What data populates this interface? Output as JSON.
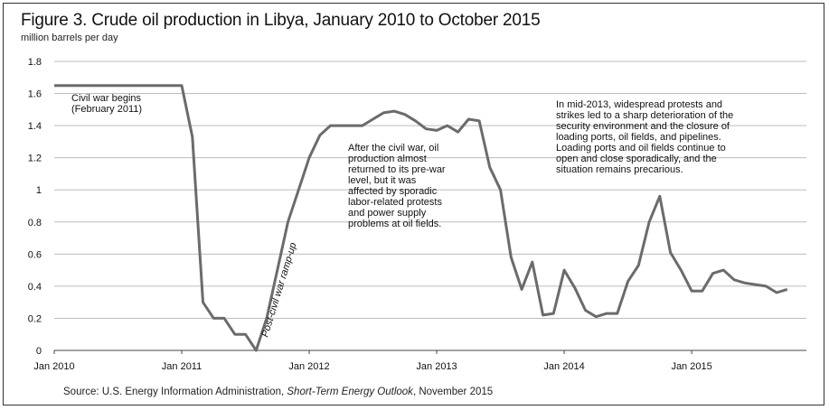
{
  "chart_data": {
    "type": "line",
    "title": "Figure 3. Crude oil production in Libya, January 2010 to October 2015",
    "subtitle": "million barrels per day",
    "xlabel": "",
    "ylabel": "million barrels per day",
    "ylim": [
      0,
      1.8
    ],
    "yticks": [
      0,
      0.2,
      0.4,
      0.6,
      0.8,
      1,
      1.2,
      1.4,
      1.6,
      1.8
    ],
    "ytick_labels": [
      "0",
      "0.2",
      "0.4",
      "0.6",
      "0.8",
      "1",
      "1.2",
      "1.4",
      "1.6",
      "1.8"
    ],
    "xticks": [
      "Jan 2010",
      "Jan 2011",
      "Jan 2012",
      "Jan 2013",
      "Jan 2014",
      "Jan 2015"
    ],
    "grid": true,
    "series_color": "#6b6b6b",
    "series": [
      {
        "x": [
          "2010-01",
          "2010-02",
          "2010-03",
          "2010-04",
          "2010-05",
          "2010-06",
          "2010-07",
          "2010-08",
          "2010-09",
          "2010-10",
          "2010-11",
          "2010-12",
          "2011-01",
          "2011-02",
          "2011-03",
          "2011-04",
          "2011-05",
          "2011-06",
          "2011-07",
          "2011-08",
          "2011-09",
          "2011-10",
          "2011-11",
          "2011-12",
          "2012-01",
          "2012-02",
          "2012-03",
          "2012-04",
          "2012-05",
          "2012-06",
          "2012-07",
          "2012-08",
          "2012-09",
          "2012-10",
          "2012-11",
          "2012-12",
          "2013-01",
          "2013-02",
          "2013-03",
          "2013-04",
          "2013-05",
          "2013-06",
          "2013-07",
          "2013-08",
          "2013-09",
          "2013-10",
          "2013-11",
          "2013-12",
          "2014-01",
          "2014-02",
          "2014-03",
          "2014-04",
          "2014-05",
          "2014-06",
          "2014-07",
          "2014-08",
          "2014-09",
          "2014-10",
          "2014-11",
          "2014-12",
          "2015-01",
          "2015-02",
          "2015-03",
          "2015-04",
          "2015-05",
          "2015-06",
          "2015-07",
          "2015-08",
          "2015-09",
          "2015-10"
        ],
        "values": [
          1.65,
          1.65,
          1.65,
          1.65,
          1.65,
          1.65,
          1.65,
          1.65,
          1.65,
          1.65,
          1.65,
          1.65,
          1.65,
          1.33,
          0.3,
          0.2,
          0.2,
          0.1,
          0.1,
          0.0,
          0.2,
          0.5,
          0.8,
          1.0,
          1.2,
          1.34,
          1.4,
          1.4,
          1.4,
          1.4,
          1.44,
          1.48,
          1.49,
          1.47,
          1.43,
          1.38,
          1.37,
          1.4,
          1.36,
          1.44,
          1.43,
          1.14,
          1.0,
          0.58,
          0.38,
          0.55,
          0.22,
          0.23,
          0.5,
          0.39,
          0.25,
          0.21,
          0.23,
          0.23,
          0.43,
          0.53,
          0.8,
          0.96,
          0.61,
          0.5,
          0.37,
          0.37,
          0.48,
          0.5,
          0.44,
          0.42,
          0.41,
          0.4,
          0.36,
          0.38
        ]
      }
    ],
    "annotations": [
      {
        "text": "Civil war begins",
        "text2": "(February 2011)"
      },
      {
        "text": "Post-civil war ramp-up"
      },
      {
        "lines": [
          "After the civil war, oil",
          "production almost",
          "returned to its pre-war",
          "level, but it was",
          "affected by sporadic",
          "labor-related protests",
          "and power supply",
          "problems at oil fields."
        ]
      },
      {
        "lines": [
          "In mid-2013, widespread protests and",
          "strikes led to a sharp deterioration of the",
          "security environment and the closure of",
          "loading ports, oil fields, and pipelines.",
          "Loading ports and oil fields continue to",
          "open and close sporadically, and the",
          "situation remains precarious."
        ]
      }
    ]
  },
  "source": {
    "prefix": "Source: U.S. Energy Information Administration, ",
    "italic": "Short-Term Energy Outlook",
    "suffix": ", November 2015"
  }
}
